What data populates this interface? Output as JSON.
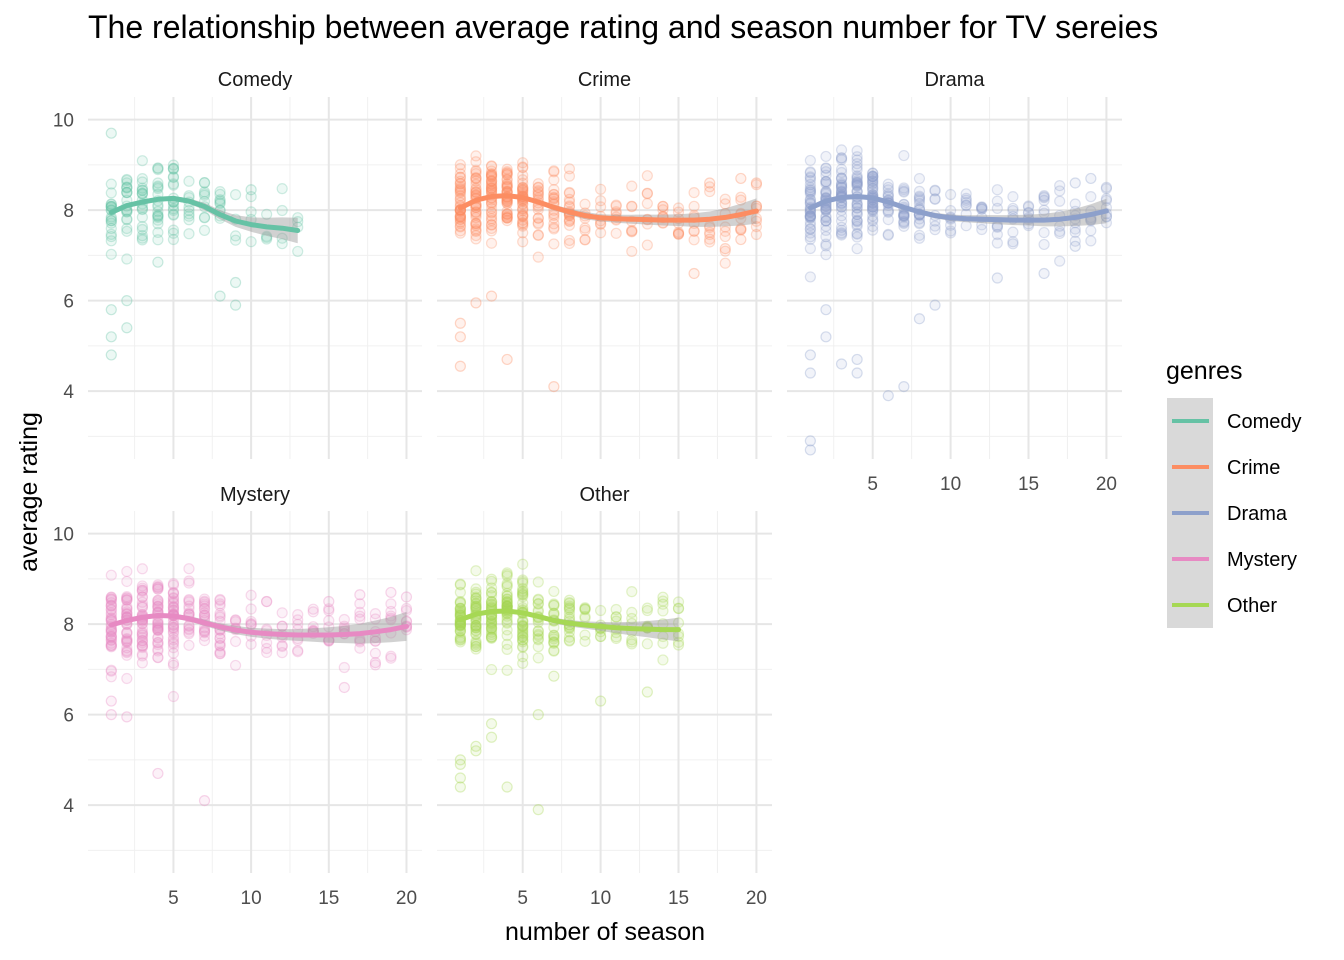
{
  "chart_data": {
    "type": "scatter",
    "title": "The relationship between average rating and season number for TV sereies",
    "xlabel": "number of season",
    "ylabel": "average rating",
    "xlim": [
      -0.5,
      21
    ],
    "ylim": [
      2.5,
      10.5
    ],
    "x_ticks": [
      5,
      10,
      15,
      20
    ],
    "y_ticks": [
      4,
      6,
      8,
      10
    ],
    "legend": {
      "title": "genres",
      "position": "right"
    },
    "panels": [
      {
        "genre": "Comedy",
        "color": "#66c2a5",
        "max_season": 13,
        "trend": [
          [
            1,
            7.95
          ],
          [
            2,
            8.1
          ],
          [
            3,
            8.18
          ],
          [
            4,
            8.24
          ],
          [
            5,
            8.26
          ],
          [
            6,
            8.2
          ],
          [
            7,
            8.08
          ],
          [
            8,
            7.9
          ],
          [
            9,
            7.76
          ],
          [
            10,
            7.68
          ],
          [
            11,
            7.63
          ],
          [
            12,
            7.6
          ],
          [
            13,
            7.55
          ]
        ],
        "ribbon_halfwidth": [
          0.04,
          0.04,
          0.04,
          0.04,
          0.05,
          0.06,
          0.08,
          0.1,
          0.13,
          0.16,
          0.2,
          0.24,
          0.28
        ],
        "outliers": [
          [
            1,
            9.7
          ],
          [
            1,
            5.2
          ],
          [
            1,
            4.8
          ],
          [
            1,
            5.8
          ],
          [
            2,
            6.0
          ],
          [
            2,
            5.4
          ],
          [
            8,
            6.1
          ],
          [
            9,
            6.4
          ],
          [
            9,
            5.9
          ],
          [
            4,
            6.85
          ],
          [
            10,
            8.45
          ]
        ]
      },
      {
        "genre": "Crime",
        "color": "#fc8d62",
        "max_season": 20,
        "trend": [
          [
            1,
            8.05
          ],
          [
            2,
            8.22
          ],
          [
            3,
            8.3
          ],
          [
            4,
            8.32
          ],
          [
            5,
            8.28
          ],
          [
            6,
            8.18
          ],
          [
            7,
            8.06
          ],
          [
            8,
            7.96
          ],
          [
            9,
            7.88
          ],
          [
            10,
            7.83
          ],
          [
            11,
            7.81
          ],
          [
            12,
            7.8
          ],
          [
            13,
            7.79
          ],
          [
            14,
            7.78
          ],
          [
            15,
            7.78
          ],
          [
            16,
            7.78
          ],
          [
            17,
            7.8
          ],
          [
            18,
            7.84
          ],
          [
            19,
            7.9
          ],
          [
            20,
            7.98
          ]
        ],
        "ribbon_halfwidth": [
          0.04,
          0.04,
          0.04,
          0.04,
          0.04,
          0.05,
          0.06,
          0.07,
          0.08,
          0.08,
          0.09,
          0.1,
          0.11,
          0.12,
          0.13,
          0.15,
          0.17,
          0.2,
          0.24,
          0.28
        ],
        "outliers": [
          [
            1,
            5.5
          ],
          [
            1,
            5.2
          ],
          [
            1,
            4.55
          ],
          [
            2,
            5.95
          ],
          [
            3,
            6.1
          ],
          [
            4,
            4.7
          ],
          [
            7,
            4.1
          ],
          [
            16,
            6.6
          ],
          [
            19,
            7.35
          ],
          [
            20,
            8.6
          ],
          [
            19,
            8.7
          ],
          [
            18,
            7.15
          ],
          [
            17,
            8.6
          ]
        ]
      },
      {
        "genre": "Drama",
        "color": "#8da0cb",
        "max_season": 20,
        "trend": [
          [
            1,
            8.05
          ],
          [
            2,
            8.2
          ],
          [
            3,
            8.28
          ],
          [
            4,
            8.3
          ],
          [
            5,
            8.27
          ],
          [
            6,
            8.18
          ],
          [
            7,
            8.06
          ],
          [
            8,
            7.96
          ],
          [
            9,
            7.88
          ],
          [
            10,
            7.83
          ],
          [
            11,
            7.81
          ],
          [
            12,
            7.8
          ],
          [
            13,
            7.79
          ],
          [
            14,
            7.78
          ],
          [
            15,
            7.78
          ],
          [
            16,
            7.78
          ],
          [
            17,
            7.8
          ],
          [
            18,
            7.84
          ],
          [
            19,
            7.9
          ],
          [
            20,
            7.98
          ]
        ],
        "ribbon_halfwidth": [
          0.03,
          0.03,
          0.03,
          0.03,
          0.03,
          0.04,
          0.05,
          0.05,
          0.06,
          0.07,
          0.08,
          0.09,
          0.1,
          0.11,
          0.12,
          0.14,
          0.16,
          0.19,
          0.23,
          0.27
        ],
        "outliers": [
          [
            1,
            2.7
          ],
          [
            1,
            2.9
          ],
          [
            1,
            4.4
          ],
          [
            1,
            4.8
          ],
          [
            2,
            5.8
          ],
          [
            2,
            5.2
          ],
          [
            3,
            4.6
          ],
          [
            4,
            4.7
          ],
          [
            4,
            4.4
          ],
          [
            6,
            3.9
          ],
          [
            7,
            4.1
          ],
          [
            8,
            5.6
          ],
          [
            9,
            5.9
          ],
          [
            13,
            6.5
          ],
          [
            16,
            6.6
          ],
          [
            18,
            7.2
          ],
          [
            20,
            7.85
          ],
          [
            19,
            8.7
          ],
          [
            18,
            8.6
          ]
        ]
      },
      {
        "genre": "Mystery",
        "color": "#e78ac3",
        "max_season": 20,
        "trend": [
          [
            1,
            7.98
          ],
          [
            2,
            8.08
          ],
          [
            3,
            8.15
          ],
          [
            4,
            8.19
          ],
          [
            5,
            8.18
          ],
          [
            6,
            8.12
          ],
          [
            7,
            8.03
          ],
          [
            8,
            7.94
          ],
          [
            9,
            7.87
          ],
          [
            10,
            7.82
          ],
          [
            11,
            7.79
          ],
          [
            12,
            7.77
          ],
          [
            13,
            7.76
          ],
          [
            14,
            7.76
          ],
          [
            15,
            7.76
          ],
          [
            16,
            7.77
          ],
          [
            17,
            7.79
          ],
          [
            18,
            7.83
          ],
          [
            19,
            7.88
          ],
          [
            20,
            7.95
          ]
        ],
        "ribbon_halfwidth": [
          0.05,
          0.05,
          0.05,
          0.05,
          0.05,
          0.06,
          0.07,
          0.08,
          0.09,
          0.1,
          0.11,
          0.12,
          0.13,
          0.15,
          0.17,
          0.19,
          0.22,
          0.25,
          0.28,
          0.32
        ],
        "outliers": [
          [
            1,
            6.0
          ],
          [
            1,
            6.3
          ],
          [
            2,
            5.95
          ],
          [
            4,
            4.7
          ],
          [
            7,
            4.1
          ],
          [
            16,
            6.6
          ],
          [
            18,
            7.15
          ],
          [
            19,
            8.7
          ],
          [
            20,
            8.6
          ],
          [
            17,
            8.65
          ],
          [
            15,
            8.5
          ]
        ]
      },
      {
        "genre": "Other",
        "color": "#a6d854",
        "max_season": 15,
        "trend": [
          [
            1,
            8.1
          ],
          [
            2,
            8.22
          ],
          [
            3,
            8.28
          ],
          [
            4,
            8.29
          ],
          [
            5,
            8.25
          ],
          [
            6,
            8.17
          ],
          [
            7,
            8.08
          ],
          [
            8,
            8.02
          ],
          [
            9,
            7.98
          ],
          [
            10,
            7.95
          ],
          [
            11,
            7.92
          ],
          [
            12,
            7.9
          ],
          [
            13,
            7.89
          ],
          [
            14,
            7.88
          ],
          [
            15,
            7.88
          ]
        ],
        "ribbon_halfwidth": [
          0.03,
          0.03,
          0.03,
          0.03,
          0.04,
          0.05,
          0.06,
          0.07,
          0.08,
          0.1,
          0.12,
          0.15,
          0.18,
          0.22,
          0.26
        ],
        "outliers": [
          [
            1,
            4.4
          ],
          [
            1,
            4.6
          ],
          [
            1,
            4.9
          ],
          [
            1,
            5.0
          ],
          [
            2,
            5.2
          ],
          [
            2,
            5.3
          ],
          [
            3,
            5.5
          ],
          [
            3,
            5.8
          ],
          [
            4,
            4.4
          ],
          [
            6,
            3.9
          ],
          [
            6,
            6.0
          ],
          [
            10,
            6.3
          ],
          [
            13,
            6.5
          ],
          [
            7,
            6.85
          ]
        ]
      }
    ]
  }
}
